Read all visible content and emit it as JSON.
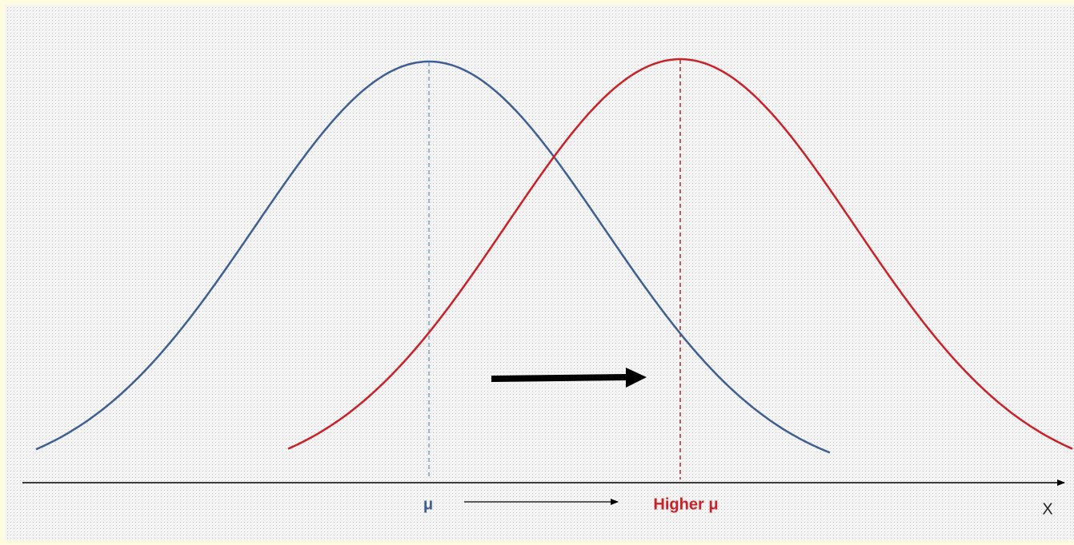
{
  "labels": {
    "mean": "μ",
    "higher_mean": "Higher μ",
    "axis": "X"
  }
}
